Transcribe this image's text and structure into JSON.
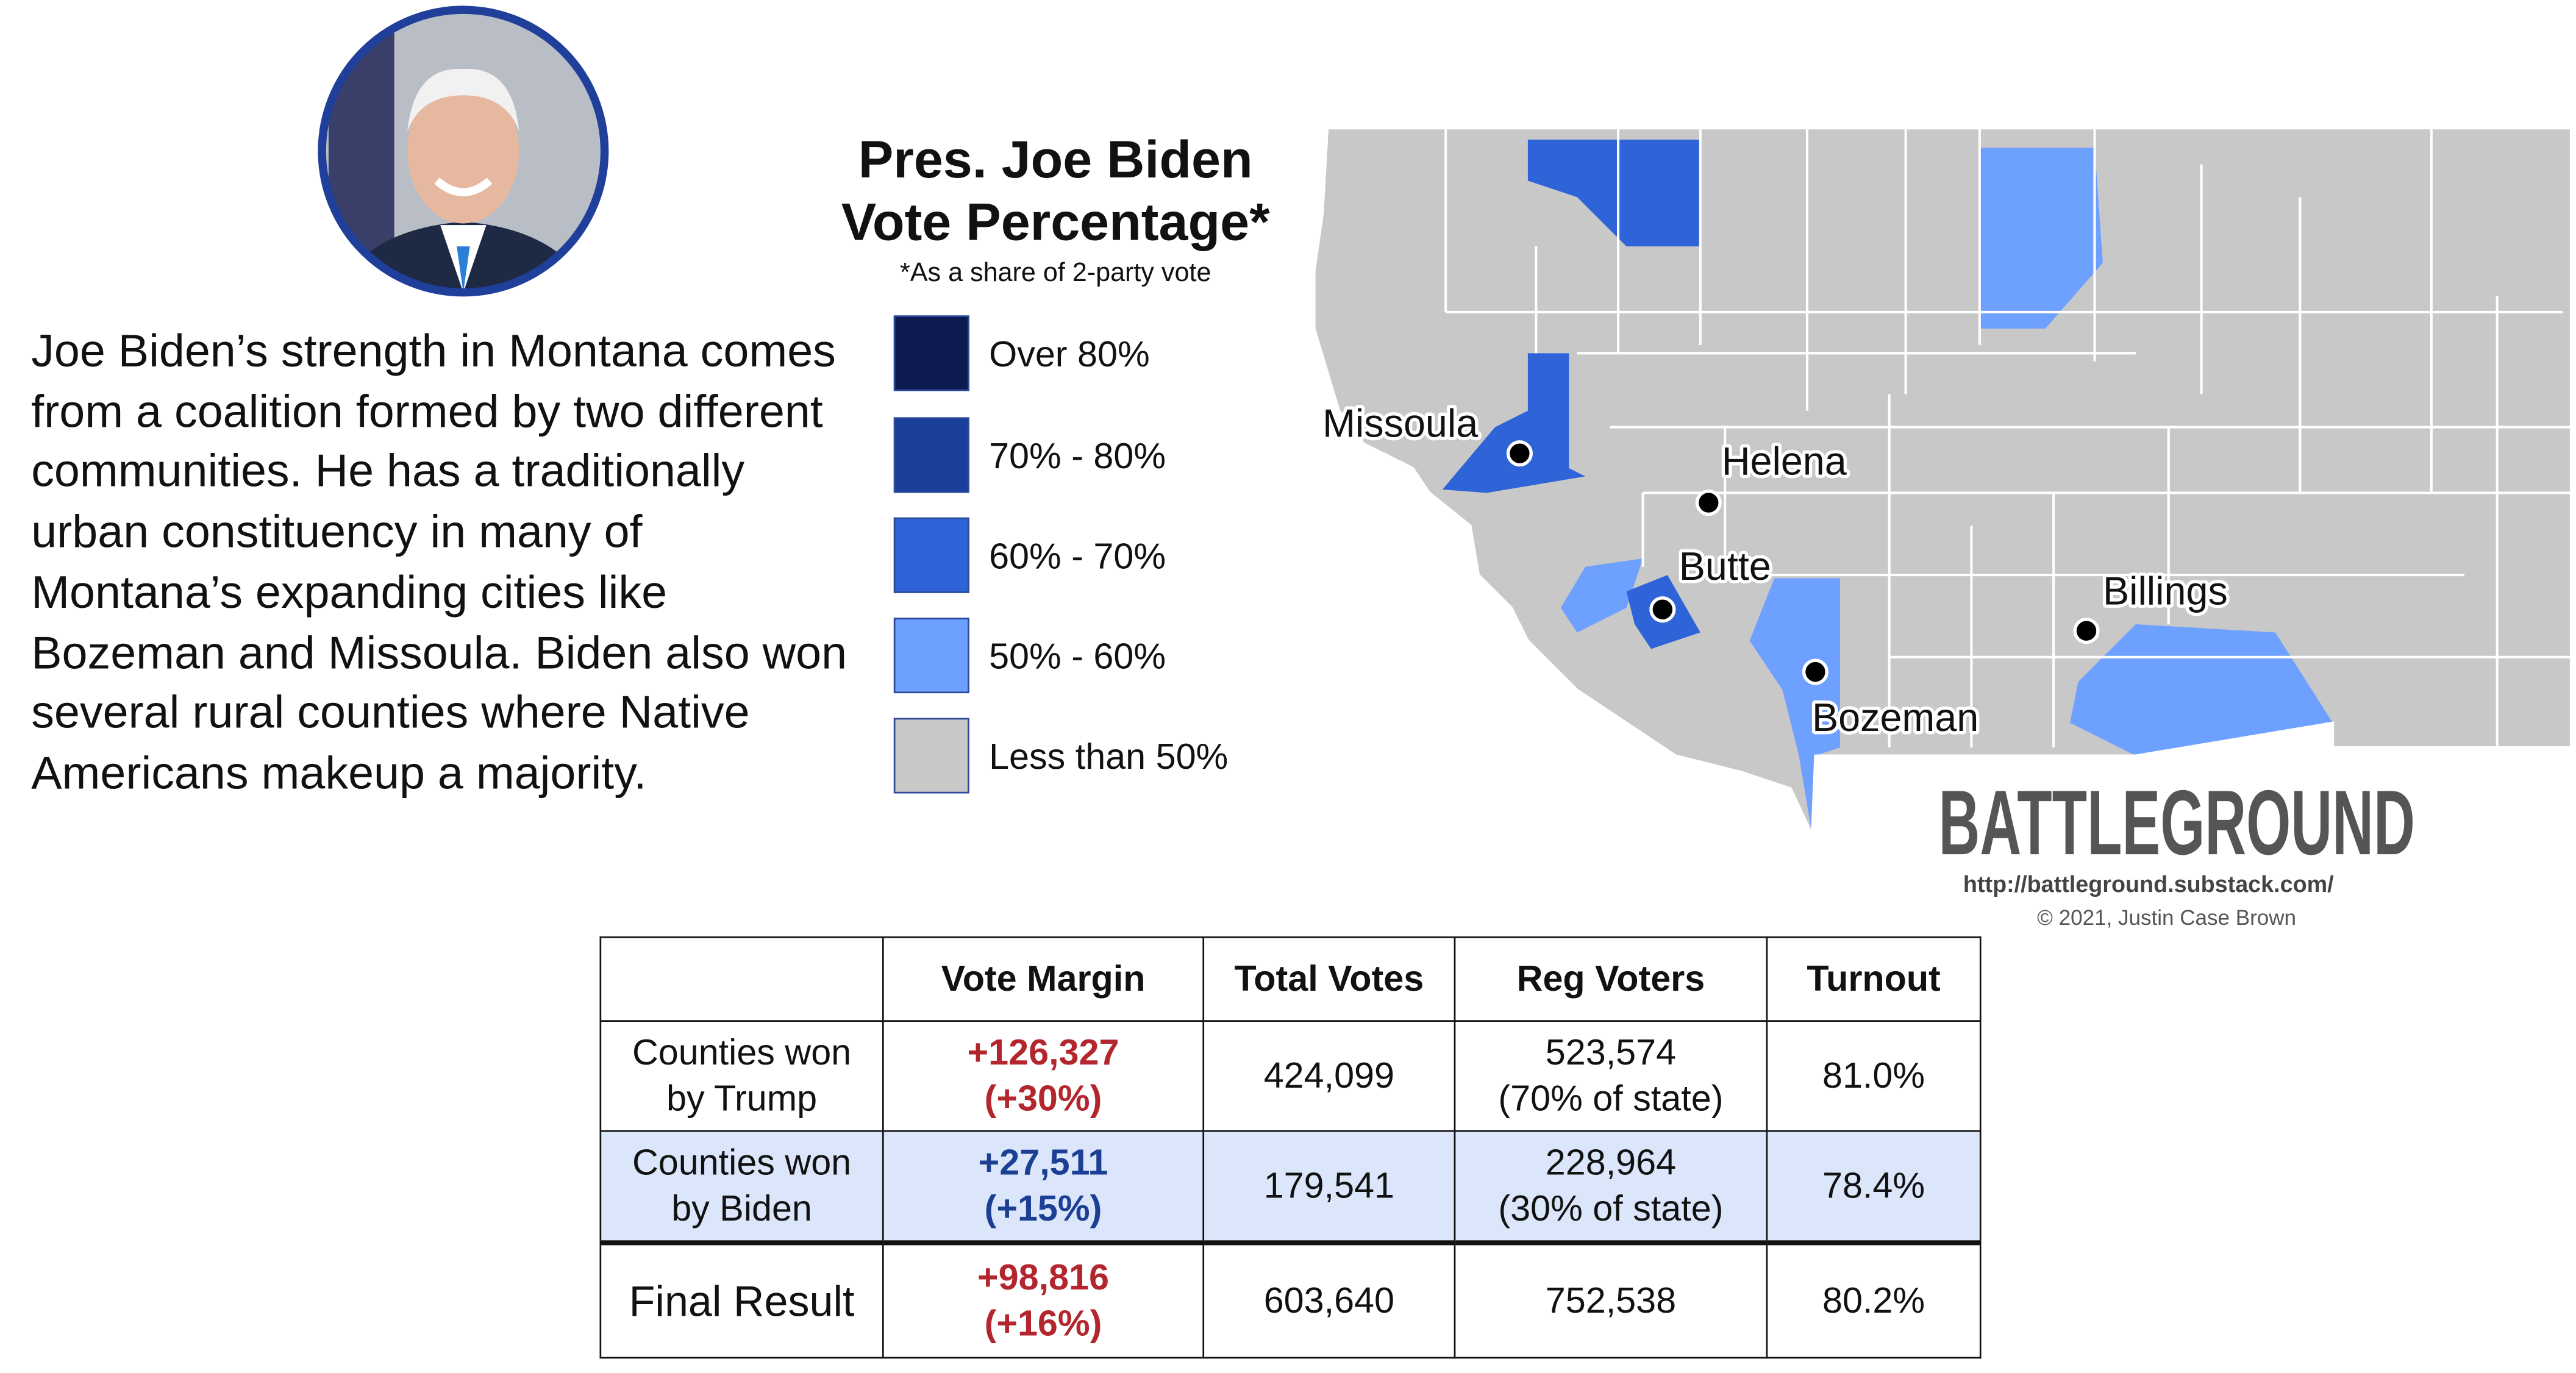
{
  "profile": {
    "description": "Joe Biden’s strength in Montana comes from a coalition formed by two different communities. He has a traditionally urban constituency in many of Montana’s expanding cities like Bozeman and Missoula. Biden also won several rural counties where Native Americans makeup a majority."
  },
  "legend": {
    "title": "Pres. Joe Biden\nVote Percentage*",
    "note": "*As a share of 2-party vote",
    "items": [
      "Over 80%",
      "70% - 80%",
      "60% - 70%",
      "50% - 60%",
      "Less than 50%"
    ]
  },
  "map": {
    "cities": [
      "Missoula",
      "Helena",
      "Butte",
      "Bozeman",
      "Billings"
    ]
  },
  "branding": {
    "name": "BATTLEGROUND",
    "url": "http://battleground.substack.com/",
    "copyright": "© 2021, Justin Case Brown"
  },
  "table": {
    "header": [
      "Vote Margin",
      "Total Votes",
      "Reg Voters",
      "Turnout"
    ],
    "rows": [
      [
        "Counties won\nby Trump",
        "+126,327\n(+30%)",
        "424,099",
        "523,574\n(70% of state)",
        "81.0%"
      ],
      [
        "Counties won\nby Biden",
        "+27,511\n(+15%)",
        "179,541",
        "228,964\n(30% of state)",
        "78.4%"
      ],
      [
        "Final Result",
        "+98,816\n(+16%)",
        "603,640",
        "752,538",
        "80.2%"
      ]
    ]
  }
}
